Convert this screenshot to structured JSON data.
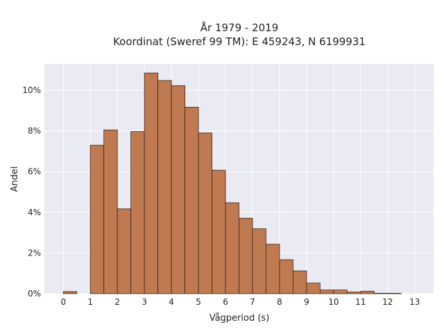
{
  "chart_data": {
    "type": "bar",
    "title": "År 1979 - 2019",
    "subtitle": "Koordinat (Sweref 99 TM): E 459243, N 6199931",
    "xlabel": "Vågperiod (s)",
    "ylabel": "Andel",
    "x_ticks": [
      "0",
      "1",
      "2",
      "3",
      "4",
      "5",
      "6",
      "7",
      "8",
      "9",
      "10",
      "11",
      "12",
      "13"
    ],
    "y_ticks": [
      "0%",
      "2%",
      "4%",
      "6%",
      "8%",
      "10%"
    ],
    "xlim": [
      -0.7,
      13.7
    ],
    "ylim": [
      0,
      11.3
    ],
    "y_unit": "%",
    "bin_width": 0.5,
    "bin_starts": [
      0,
      1,
      1.5,
      2,
      2.5,
      3,
      3.5,
      4,
      4.5,
      5,
      5.5,
      6,
      6.5,
      7,
      7.5,
      8,
      8.5,
      9,
      9.5,
      10,
      10.5,
      11,
      11.5,
      12
    ],
    "values": [
      0.1,
      7.3,
      8.05,
      4.17,
      7.97,
      10.85,
      10.48,
      10.23,
      9.17,
      7.9,
      6.07,
      4.47,
      3.71,
      3.19,
      2.43,
      1.67,
      1.12,
      0.52,
      0.18,
      0.18,
      0.08,
      0.12,
      0.02,
      0.02
    ],
    "grid": true,
    "colors": {
      "bar_fill": "#c07a52",
      "bar_edge": "#3a2418",
      "plot_background": "#eaeaf2",
      "grid": "#ffffff"
    }
  }
}
